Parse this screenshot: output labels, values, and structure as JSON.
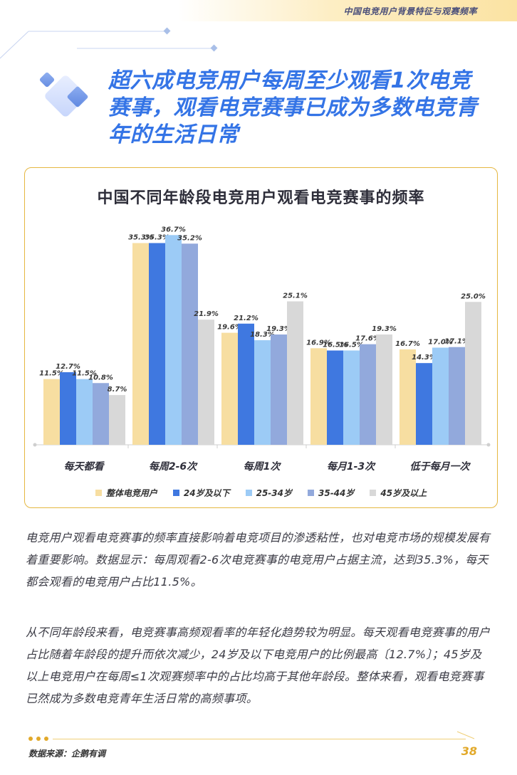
{
  "header": {
    "title": "中国电竞用户背景特征与观赛频率"
  },
  "main_title": "超六成电竞用户每周至少观看1次电竞赛事，观看电竞赛事已成为多数电竞青年的生活日常",
  "chart_data": {
    "type": "bar",
    "title": "中国不同年龄段电竞用户观看电竞赛事的频率",
    "categories": [
      "每天都看",
      "每周2-6次",
      "每周1次",
      "每月1-3次",
      "低于每月一次"
    ],
    "series": [
      {
        "name": "整体电竞用户",
        "color": "#f7dea1",
        "values": [
          11.5,
          35.3,
          19.6,
          16.9,
          16.7
        ],
        "labels": [
          "11.5%",
          "35.3%",
          "19.6%",
          "16.9%",
          "16.7%"
        ]
      },
      {
        "name": "24岁及以下",
        "color": "#3f78e0",
        "values": [
          12.7,
          35.3,
          21.2,
          16.5,
          14.3
        ],
        "labels": [
          "12.7%",
          "35.3%",
          "21.2%",
          "16.5%",
          "14.3%"
        ]
      },
      {
        "name": "25-34岁",
        "color": "#9ccbf6",
        "values": [
          11.5,
          36.7,
          18.3,
          16.5,
          17.0
        ],
        "labels": [
          "11.5%",
          "36.7%",
          "18.3%",
          "16.5%",
          "17.0%"
        ]
      },
      {
        "name": "35-44岁",
        "color": "#92a9dc",
        "values": [
          10.8,
          35.2,
          19.3,
          17.6,
          17.1
        ],
        "labels": [
          "10.8%",
          "35.2%",
          "19.3%",
          "17.6%",
          "17.1%"
        ]
      },
      {
        "name": "45岁及以上",
        "color": "#d8d8d8",
        "values": [
          8.7,
          21.9,
          25.1,
          19.3,
          25.0
        ],
        "labels": [
          "8.7%",
          "21.9%",
          "25.1%",
          "19.3%",
          "25.0%"
        ]
      }
    ],
    "ylim": [
      0,
      40
    ],
    "legend": "bottom",
    "grid": false
  },
  "paragraphs": [
    "电竞用户观看电竞赛事的频率直接影响着电竞项目的渗透粘性，也对电竞市场的规模发展有着重要影响。数据显示：每周观看2-6次电竞赛事的电竞用户占据主流，达到35.3%，每天都会观看的电竞用户占比11.5%。",
    "从不同年龄段来看，电竞赛事高频观看率的年轻化趋势较为明显。每天观看电竞赛事的用户占比随着年龄段的提升而依次减少，24岁及以下电竞用户的比例最高〔12.7%〕；45岁及以上电竞用户在每周≤1次观赛频率中的占比均高于其他年龄段。整体来看，观看电竞赛事已然成为多数电竞青年生活日常的高频事项。"
  ],
  "footer": {
    "source": "数据来源：企鹅有调",
    "page": "38"
  }
}
